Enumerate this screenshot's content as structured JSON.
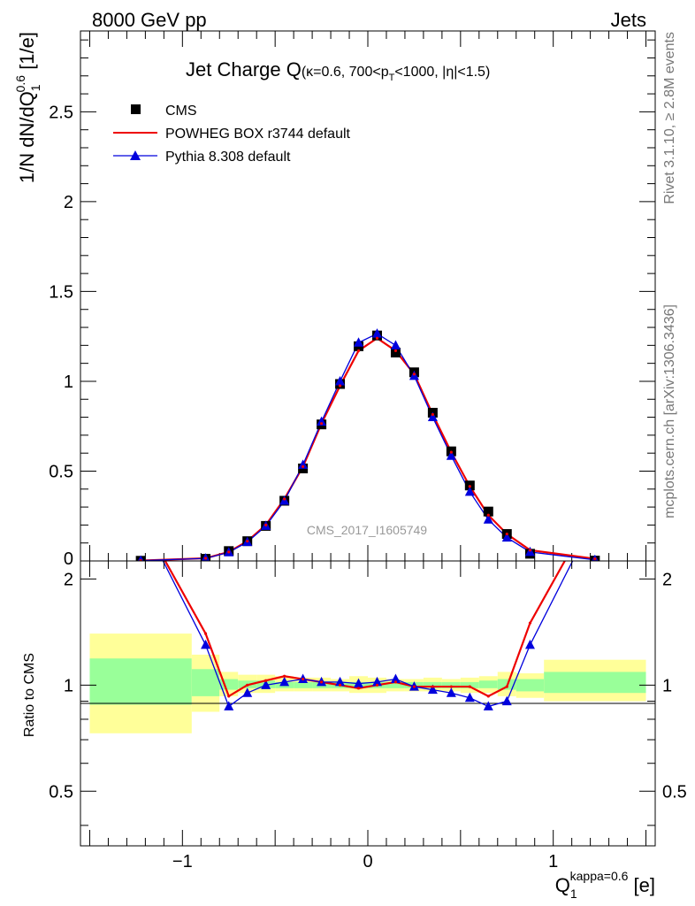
{
  "header": {
    "energy_label": "8000 GeV pp",
    "process_label": "Jets"
  },
  "side_labels": {
    "rivet": "Rivet 3.1.10, ≥ 2.8M events",
    "mcplots": "mcplots.cern.ch [arXiv:1306.3436]"
  },
  "colors": {
    "powheg": "#ee0000",
    "pythia": "#0000dd",
    "cms": "#000000",
    "band_outer": "#ffff99",
    "band_inner": "#99ff99"
  },
  "chart_data": [
    {
      "type": "line",
      "title_main": "Jet Charge Q",
      "title_sub": "(κ=0.6, 700<p",
      "title_sub_t": "T",
      "title_sub_rest": "<1000, |η|<1.5)",
      "ylabel": "1/N dN/dQ",
      "ylabel_sup": "0.6",
      "ylabel_sub": "1",
      "ylabel_unit": " [1/e]",
      "watermark": "CMS_2017_I1605749",
      "xlim": [
        -1.55,
        1.55
      ],
      "ylim": [
        0,
        2.95
      ],
      "yticks": [
        0.5,
        1,
        1.5,
        2,
        2.5
      ],
      "ytick_labels": [
        "0.5",
        "1",
        "1.5",
        "2",
        "2.5"
      ],
      "ytick_zero_label": "0",
      "legend": {
        "position": "top-left",
        "entries": [
          "CMS",
          "POWHEG BOX r3744 default",
          "Pythia 8.308 default"
        ]
      },
      "x": [
        -1.225,
        -0.875,
        -0.75,
        -0.65,
        -0.55,
        -0.45,
        -0.35,
        -0.25,
        -0.15,
        -0.05,
        0.05,
        0.15,
        0.25,
        0.35,
        0.45,
        0.55,
        0.65,
        0.75,
        0.875,
        1.225
      ],
      "series": [
        {
          "name": "CMS",
          "values": [
            0.001,
            0.012,
            0.055,
            0.11,
            0.195,
            0.335,
            0.515,
            0.76,
            0.985,
            1.195,
            1.255,
            1.16,
            1.05,
            0.825,
            0.61,
            0.42,
            0.275,
            0.15,
            0.04,
            0.002
          ]
        },
        {
          "name": "POWHEG BOX r3744 default",
          "values": [
            0.002,
            0.015,
            0.05,
            0.11,
            0.2,
            0.345,
            0.525,
            0.765,
            0.975,
            1.17,
            1.24,
            1.17,
            1.04,
            0.815,
            0.605,
            0.415,
            0.255,
            0.15,
            0.06,
            0.012
          ]
        },
        {
          "name": "Pythia 8.308 default",
          "values": [
            0.002,
            0.014,
            0.048,
            0.105,
            0.195,
            0.335,
            0.535,
            0.775,
            1.0,
            1.215,
            1.265,
            1.2,
            1.03,
            0.8,
            0.585,
            0.385,
            0.23,
            0.13,
            0.05,
            0.006
          ]
        }
      ]
    },
    {
      "type": "line",
      "ylabel": "Ratio to CMS",
      "xlabel": "Q",
      "xlabel_sup": "kappa=0.6",
      "xlabel_sub": "1",
      "xlabel_unit": " [e]",
      "xlim": [
        -1.55,
        1.55
      ],
      "ylim": [
        0.35,
        2.25
      ],
      "yticks": [
        0.5,
        1,
        2
      ],
      "ytick_labels": [
        "0.5",
        "1",
        "2"
      ],
      "xticks": [
        -1,
        0,
        1
      ],
      "xtick_labels": [
        "−1",
        "0",
        "1"
      ],
      "x": [
        -1.225,
        -0.875,
        -0.75,
        -0.65,
        -0.55,
        -0.45,
        -0.35,
        -0.25,
        -0.15,
        -0.05,
        0.05,
        0.15,
        0.25,
        0.35,
        0.45,
        0.55,
        0.65,
        0.75,
        0.875,
        1.225
      ],
      "series": [
        {
          "name": "POWHEG BOX r3744 default",
          "values": [
            3.0,
            1.4,
            0.93,
            1.0,
            1.03,
            1.06,
            1.04,
            1.02,
            1.0,
            0.98,
            1.0,
            1.02,
            0.99,
            0.99,
            0.99,
            0.99,
            0.93,
            0.99,
            1.5,
            3.2
          ]
        },
        {
          "name": "Pythia 8.308 default",
          "values": [
            3.0,
            1.3,
            0.87,
            0.95,
            1.0,
            1.02,
            1.04,
            1.02,
            1.02,
            1.01,
            1.02,
            1.04,
            0.99,
            0.97,
            0.95,
            0.92,
            0.87,
            0.9,
            1.3,
            3.0
          ]
        }
      ],
      "bands": [
        {
          "x": [
            -1.5,
            -0.95
          ],
          "outer": [
            0.73,
            1.4
          ],
          "inner": [
            0.88,
            1.19
          ]
        },
        {
          "x": [
            -0.95,
            -0.8
          ],
          "outer": [
            0.84,
            1.22
          ],
          "inner": [
            0.93,
            1.11
          ]
        },
        {
          "x": [
            -0.8,
            -0.7
          ],
          "outer": [
            0.93,
            1.09
          ],
          "inner": [
            0.97,
            1.04
          ]
        },
        {
          "x": [
            -0.7,
            -0.6
          ],
          "outer": [
            0.95,
            1.07
          ],
          "inner": [
            0.98,
            1.03
          ]
        },
        {
          "x": [
            -0.6,
            -0.5
          ],
          "outer": [
            0.95,
            1.07
          ],
          "inner": [
            0.98,
            1.03
          ]
        },
        {
          "x": [
            -0.5,
            -0.4
          ],
          "outer": [
            0.96,
            1.06
          ],
          "inner": [
            0.98,
            1.02
          ]
        },
        {
          "x": [
            -0.4,
            -0.3
          ],
          "outer": [
            0.96,
            1.05
          ],
          "inner": [
            0.98,
            1.02
          ]
        },
        {
          "x": [
            -0.3,
            -0.2
          ],
          "outer": [
            0.96,
            1.05
          ],
          "inner": [
            0.98,
            1.02
          ]
        },
        {
          "x": [
            -0.2,
            -0.1
          ],
          "outer": [
            0.96,
            1.04
          ],
          "inner": [
            0.98,
            1.02
          ]
        },
        {
          "x": [
            -0.1,
            0.0
          ],
          "outer": [
            0.95,
            1.06
          ],
          "inner": [
            0.98,
            1.02
          ]
        },
        {
          "x": [
            0.0,
            0.1
          ],
          "outer": [
            0.95,
            1.05
          ],
          "inner": [
            0.98,
            1.02
          ]
        },
        {
          "x": [
            0.1,
            0.2
          ],
          "outer": [
            0.96,
            1.04
          ],
          "inner": [
            0.98,
            1.02
          ]
        },
        {
          "x": [
            0.2,
            0.3
          ],
          "outer": [
            0.96,
            1.04
          ],
          "inner": [
            0.98,
            1.02
          ]
        },
        {
          "x": [
            0.3,
            0.4
          ],
          "outer": [
            0.96,
            1.05
          ],
          "inner": [
            0.98,
            1.02
          ]
        },
        {
          "x": [
            0.4,
            0.5
          ],
          "outer": [
            0.96,
            1.04
          ],
          "inner": [
            0.98,
            1.02
          ]
        },
        {
          "x": [
            0.5,
            0.6
          ],
          "outer": [
            0.95,
            1.05
          ],
          "inner": [
            0.98,
            1.02
          ]
        },
        {
          "x": [
            0.6,
            0.7
          ],
          "outer": [
            0.95,
            1.06
          ],
          "inner": [
            0.98,
            1.03
          ]
        },
        {
          "x": [
            0.7,
            0.8
          ],
          "outer": [
            0.93,
            1.09
          ],
          "inner": [
            0.97,
            1.04
          ]
        },
        {
          "x": [
            0.8,
            0.95
          ],
          "outer": [
            0.92,
            1.08
          ],
          "inner": [
            0.96,
            1.04
          ]
        },
        {
          "x": [
            0.95,
            1.5
          ],
          "outer": [
            0.9,
            1.18
          ],
          "inner": [
            0.95,
            1.09
          ]
        }
      ]
    }
  ]
}
